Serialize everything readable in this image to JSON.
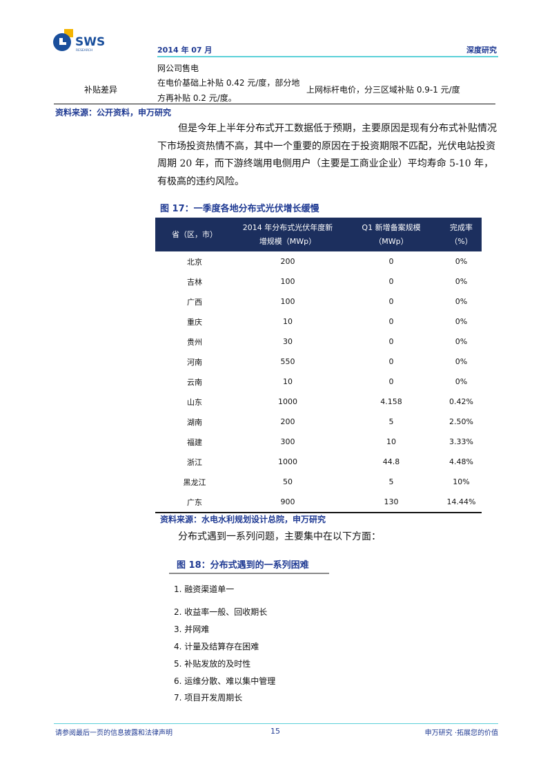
{
  "header": {
    "logo_text": "SWS",
    "logo_subtext": "RESEARCH",
    "date": "2014 年 07 月",
    "category": "深度研究",
    "accent_color": "#5ad0d8"
  },
  "top_table": {
    "row_label": "补贴差异",
    "col2_lines": [
      "网公司售电",
      "在电价基础上补贴 0.42 元/度，部分地",
      "方再补贴 0.2 元/度。"
    ],
    "col3": "上网标杆电价，分三区域补贴 0.9-1 元/度"
  },
  "source1": "资料来源：公开资料，申万研究",
  "paragraph1": "但是今年上半年分布式开工数据低于预期，主要原因是现有分布式补贴情况下市场投资热情不高，其中一个重要的原因在于投资期限不匹配，光伏电站投资周期 20 年，而下游终端用电侧用户（主要是工商业企业）平均寿命 5-10 年，有极高的违约风险。",
  "figure17": {
    "title": "图 17：一季度各地分布式光伏增长缓慢",
    "headers": [
      "省（区，市）",
      "2014 年分布式光伏年度新增规模（MWp）",
      "Q1 新增备案规模（MWp）",
      "完成率（%）"
    ],
    "rows": [
      [
        "北京",
        "200",
        "0",
        "0%"
      ],
      [
        "吉林",
        "100",
        "0",
        "0%"
      ],
      [
        "广西",
        "100",
        "0",
        "0%"
      ],
      [
        "重庆",
        "10",
        "0",
        "0%"
      ],
      [
        "贵州",
        "30",
        "0",
        "0%"
      ],
      [
        "河南",
        "550",
        "0",
        "0%"
      ],
      [
        "云南",
        "10",
        "0",
        "0%"
      ],
      [
        "山东",
        "1000",
        "4.158",
        "0.42%"
      ],
      [
        "湖南",
        "200",
        "5",
        "2.50%"
      ],
      [
        "福建",
        "300",
        "10",
        "3.33%"
      ],
      [
        "浙江",
        "1000",
        "44.8",
        "4.48%"
      ],
      [
        "黑龙江",
        "50",
        "5",
        "10%"
      ],
      [
        "广东",
        "900",
        "130",
        "14.44%"
      ]
    ],
    "header_bg": "#1c2f5e"
  },
  "source2": "资料来源：水电水利规划设计总院，申万研究",
  "paragraph2": "分布式遇到一系列问题，主要集中在以下方面：",
  "figure18": {
    "title": "图 18：分布式遇到的一系列困难",
    "items": [
      "1.  融资渠道单一",
      "2.  收益率一般、回收期长",
      "3.  并网难",
      "4.  计量及结算存在困难",
      "5.  补贴发放的及时性",
      "6.  运维分散、难以集中管理",
      "7.  项目开发周期长"
    ]
  },
  "footer": {
    "disclaimer": "请参阅最后一页的信息披露和法律声明",
    "page_number": "15",
    "slogan": "申万研究 ·拓展您的价值"
  }
}
